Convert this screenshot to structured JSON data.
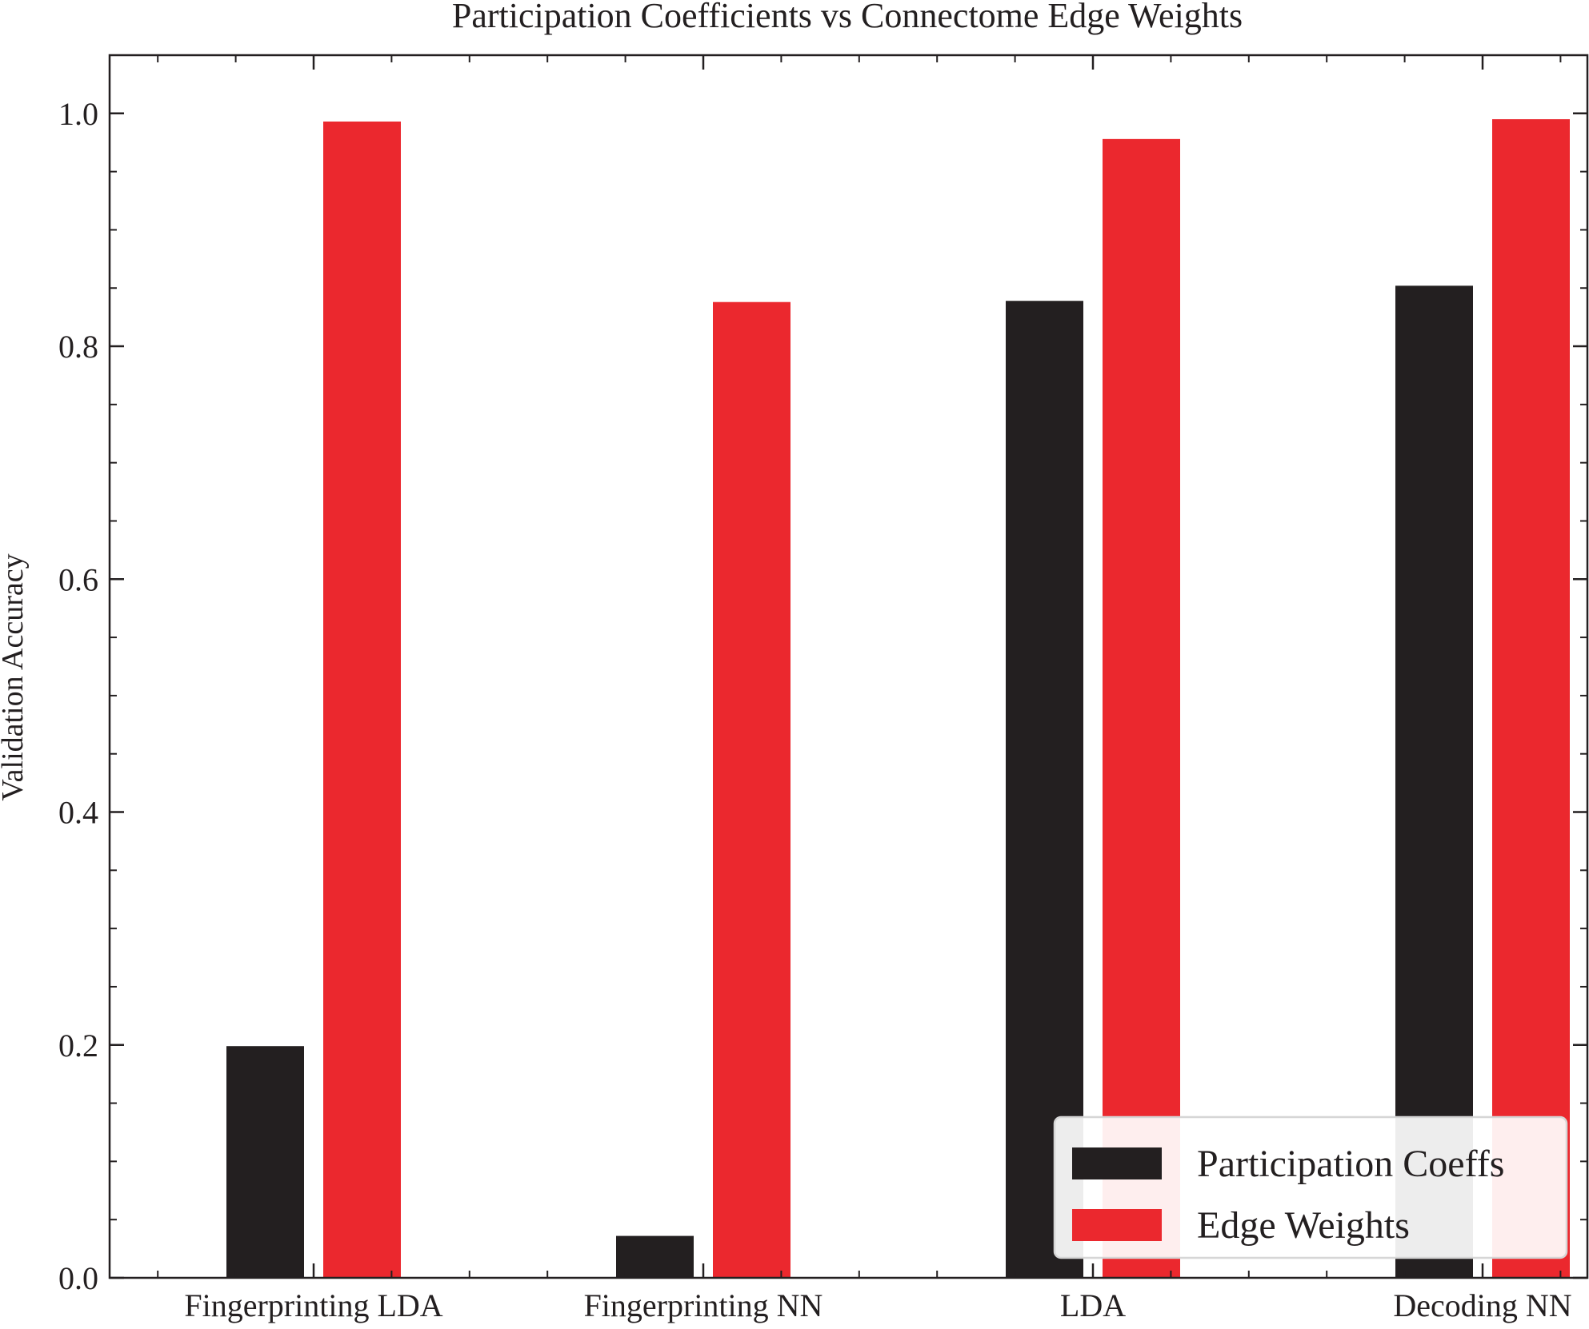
{
  "chart_data": {
    "type": "bar",
    "title": "Participation Coefficients vs Connectome Edge Weights",
    "xlabel": "",
    "ylabel": "Validation Accuracy",
    "categories": [
      "Fingerprinting LDA",
      "Fingerprinting NN",
      "LDA",
      "Decoding NN"
    ],
    "series": [
      {
        "name": "Participation Coeffs",
        "color": "#231f20",
        "values": [
          0.199,
          0.036,
          0.839,
          0.852
        ]
      },
      {
        "name": "Edge Weights",
        "color": "#eb282e",
        "values": [
          0.993,
          0.838,
          0.978,
          0.995
        ]
      }
    ],
    "ylim": [
      0.0,
      1.05
    ],
    "yticks": [
      "0.0",
      "0.2",
      "0.4",
      "0.6",
      "0.8",
      "1.0"
    ],
    "ytick_values": [
      0.0,
      0.2,
      0.4,
      0.6,
      0.8,
      1.0
    ],
    "grid": false,
    "legend_position": "lower-right"
  }
}
